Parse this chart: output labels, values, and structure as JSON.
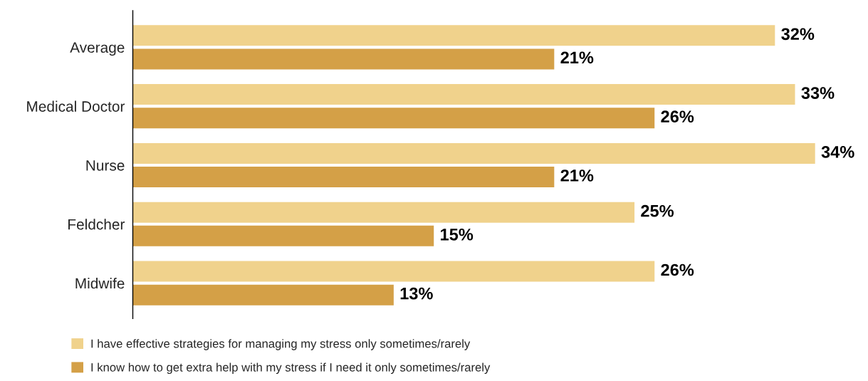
{
  "chart_data": {
    "type": "bar",
    "orientation": "horizontal",
    "categories": [
      "Average",
      "Medical Doctor",
      "Nurse",
      "Feldcher",
      "Midwife"
    ],
    "series": [
      {
        "name": "I have effective strategies for managing my stress only sometimes/rarely",
        "color": "#f0d28c",
        "values": [
          32,
          33,
          34,
          25,
          26
        ],
        "value_labels": [
          "32%",
          "33%",
          "34%",
          "25%",
          "26%"
        ]
      },
      {
        "name": "I know how to get extra help with my stress if I need it only sometimes/rarely",
        "color": "#d4a047",
        "values": [
          21,
          26,
          21,
          15,
          13
        ],
        "value_labels": [
          "21%",
          "26%",
          "21%",
          "15%",
          "13%"
        ]
      }
    ],
    "tick_labels": "y",
    "grid": false,
    "legend": "bottom left"
  }
}
